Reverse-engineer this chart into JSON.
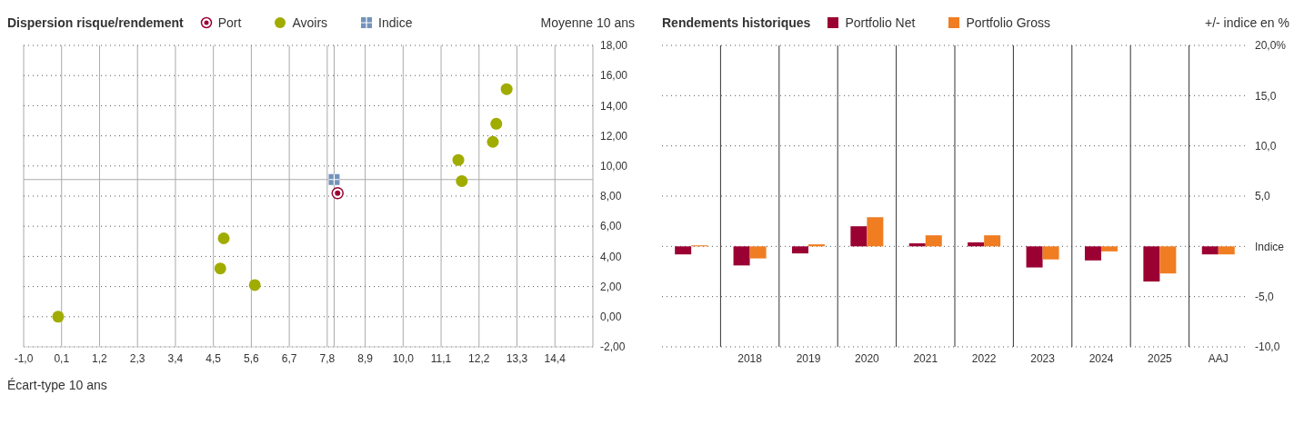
{
  "chart_data": [
    {
      "type": "scatter",
      "title": "Dispersion risque/rendement",
      "xlabel": "Écart-type 10 ans",
      "ylabel": "Moyenne 10 ans",
      "series": [
        {
          "name": "Port",
          "color": "#9b0033",
          "marker": "circle",
          "x": [
            8.1
          ],
          "values": [
            8.2
          ]
        },
        {
          "name": "Avoirs",
          "color": "#a0ac00",
          "marker": "circle",
          "x": [
            0.0,
            4.7,
            4.8,
            5.7,
            11.6,
            11.7,
            12.6,
            12.7,
            13.0
          ],
          "values": [
            0.0,
            3.2,
            5.2,
            2.1,
            10.4,
            9.0,
            11.6,
            12.8,
            15.1
          ]
        },
        {
          "name": "Indice",
          "color": "#7393bb",
          "marker": "square",
          "x": [
            8.0
          ],
          "values": [
            9.1
          ]
        }
      ],
      "xlim": [
        -1.0,
        15.5
      ],
      "xticks": [
        {
          "value": -1.0,
          "label": "-1,0"
        },
        {
          "value": 0.1,
          "label": "0,1"
        },
        {
          "value": 1.2,
          "label": "1,2"
        },
        {
          "value": 2.3,
          "label": "2,3"
        },
        {
          "value": 3.4,
          "label": "3,4"
        },
        {
          "value": 4.5,
          "label": "4,5"
        },
        {
          "value": 5.6,
          "label": "5,6"
        },
        {
          "value": 6.7,
          "label": "6,7"
        },
        {
          "value": 7.8,
          "label": "7,8"
        },
        {
          "value": 8.9,
          "label": "8,9"
        },
        {
          "value": 10.0,
          "label": "10,0"
        },
        {
          "value": 11.1,
          "label": "11,1"
        },
        {
          "value": 12.2,
          "label": "12,2"
        },
        {
          "value": 13.3,
          "label": "13,3"
        },
        {
          "value": 14.4,
          "label": "14,4"
        }
      ],
      "ylim": [
        -2,
        18
      ],
      "yticks": [
        {
          "value": -2,
          "label": "-2,00"
        },
        {
          "value": 0,
          "label": "0,00"
        },
        {
          "value": 2,
          "label": "2,00"
        },
        {
          "value": 4,
          "label": "4,00"
        },
        {
          "value": 6,
          "label": "6,00"
        },
        {
          "value": 8,
          "label": "8,00"
        },
        {
          "value": 10,
          "label": "10,00"
        },
        {
          "value": 12,
          "label": "12,00"
        },
        {
          "value": 14,
          "label": "14,00"
        },
        {
          "value": 16,
          "label": "16,00"
        },
        {
          "value": 18,
          "label": "18,00"
        }
      ],
      "ref_lines": [
        {
          "axis": "x",
          "value": 8.0,
          "color": "#aaaaaa"
        },
        {
          "axis": "y",
          "value": 9.1,
          "color": "#aaaaaa"
        }
      ],
      "grid": true,
      "legend": "top"
    },
    {
      "type": "bar",
      "title": "Rendements historiques",
      "ylabel": "+/- indice en %",
      "categories": [
        null,
        "2018",
        "2019",
        "2020",
        "2021",
        "2022",
        "2023",
        "2024",
        "2025",
        "AAJ"
      ],
      "series": [
        {
          "name": "Portfolio Net",
          "color": "#9b0033",
          "values": [
            -0.8,
            -1.9,
            -0.7,
            2.0,
            0.3,
            0.4,
            -2.1,
            -1.4,
            -3.5,
            -0.8
          ]
        },
        {
          "name": "Portfolio Gross",
          "color": "#f07d22",
          "values": [
            0.1,
            -1.2,
            0.2,
            2.9,
            1.1,
            1.1,
            -1.3,
            -0.5,
            -2.7,
            -0.8
          ]
        }
      ],
      "ylim": [
        -10,
        20
      ],
      "yticks": [
        {
          "value": -10,
          "label": "-10,0"
        },
        {
          "value": -5,
          "label": "-5,0"
        },
        {
          "value": 0,
          "label": "Indice"
        },
        {
          "value": 5,
          "label": "5,0"
        },
        {
          "value": 10,
          "label": "10,0"
        },
        {
          "value": 15,
          "label": "15,0"
        },
        {
          "value": 20,
          "label": "20,0%"
        }
      ],
      "grid": true,
      "legend": "top"
    }
  ]
}
